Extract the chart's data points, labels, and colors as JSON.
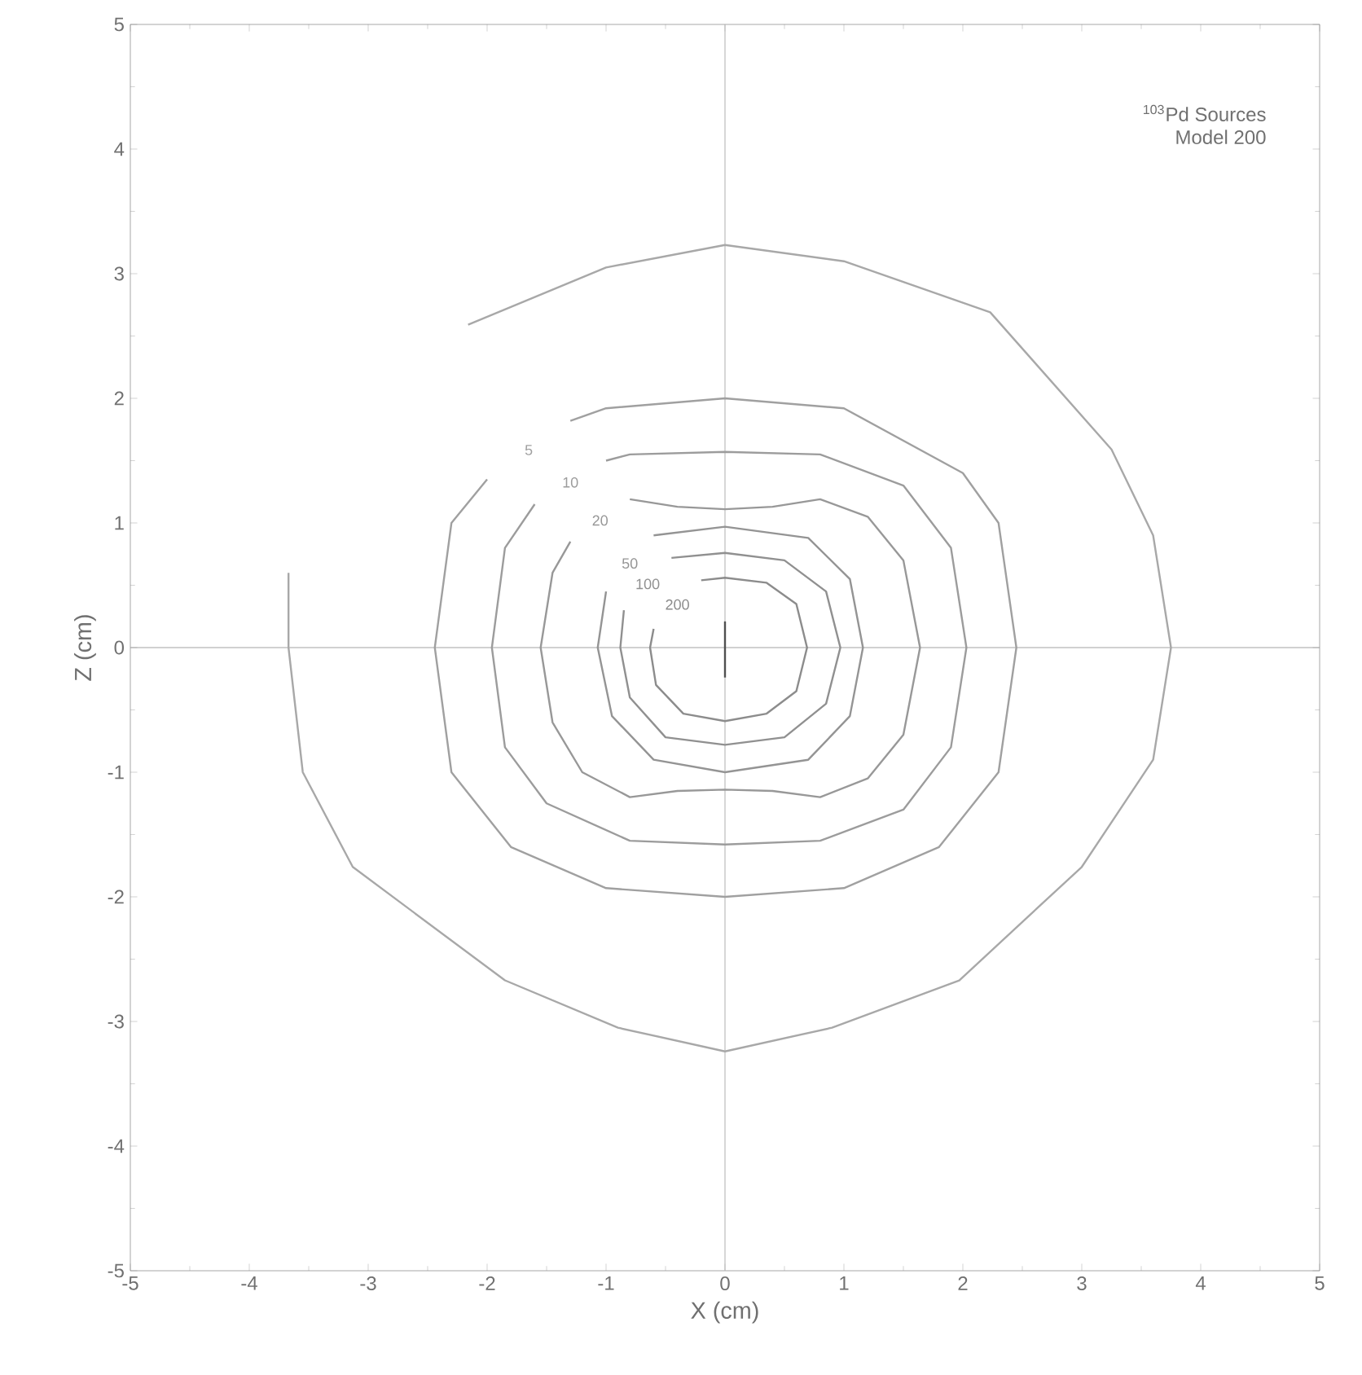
{
  "chart_data": {
    "type": "line",
    "title": "$^{103}$Pd Sources",
    "subtitle": "Model 200",
    "xlabel": "X (cm)",
    "ylabel": "Z (cm)",
    "xlim": [
      -5,
      5
    ],
    "ylim": [
      -5,
      5
    ],
    "xticks": [
      -5,
      -4,
      -3,
      -2,
      -1,
      0,
      1,
      2,
      3,
      4,
      5
    ],
    "yticks": [
      -5,
      -4,
      -3,
      -2,
      -1,
      0,
      1,
      2,
      3,
      4,
      5
    ],
    "ref_lines": [
      {
        "axis": "x",
        "value": 0,
        "color": "#bcbcbc"
      },
      {
        "axis": "y",
        "value": 0,
        "color": "#a4a4a4"
      }
    ],
    "marker": "none",
    "line_style": "solid",
    "series": [
      {
        "color": "#a8a8a8",
        "x": [
          -2.16,
          -1.0,
          0,
          1.0,
          2.23,
          3.25,
          3.6,
          3.75,
          3.6,
          3.0,
          1.97,
          0.9,
          0,
          -0.9,
          -1.85,
          -3.13,
          -3.55,
          -3.67,
          -3.67
        ],
        "values": [
          2.59,
          3.05,
          3.23,
          3.1,
          2.69,
          1.59,
          0.9,
          0,
          -0.9,
          -1.76,
          -2.67,
          -3.05,
          -3.24,
          -3.05,
          -2.67,
          -1.76,
          -1.0,
          0,
          0.6
        ]
      },
      {
        "name": "5",
        "color": "#a0a0a0",
        "x": [
          -1.3,
          -1.0,
          0,
          1.0,
          2.0,
          2.3,
          2.45,
          2.3,
          1.8,
          1.0,
          0,
          -1.0,
          -1.8,
          -2.3,
          -2.44,
          -2.3,
          -2.0
        ],
        "values": [
          1.82,
          1.92,
          2.0,
          1.92,
          1.4,
          1.0,
          0,
          -1.0,
          -1.6,
          -1.93,
          -2.0,
          -1.93,
          -1.6,
          -1.0,
          0,
          1.0,
          1.35
        ]
      },
      {
        "name": "10",
        "color": "#9c9c9c",
        "x": [
          -1.0,
          -0.8,
          0,
          0.8,
          1.5,
          1.9,
          2.03,
          1.9,
          1.5,
          0.8,
          0,
          -0.8,
          -1.5,
          -1.85,
          -1.96,
          -1.85,
          -1.6
        ],
        "values": [
          1.5,
          1.55,
          1.57,
          1.55,
          1.3,
          0.8,
          0,
          -0.8,
          -1.3,
          -1.55,
          -1.58,
          -1.55,
          -1.25,
          -0.8,
          0,
          0.8,
          1.15
        ]
      },
      {
        "name": "20",
        "color": "#989898",
        "x": [
          -0.8,
          -0.4,
          0,
          0.4,
          0.8,
          1.2,
          1.5,
          1.64,
          1.5,
          1.2,
          0.8,
          0.4,
          0,
          -0.4,
          -0.8,
          -1.2,
          -1.45,
          -1.55,
          -1.45,
          -1.3
        ],
        "values": [
          1.19,
          1.13,
          1.11,
          1.13,
          1.19,
          1.05,
          0.7,
          0,
          -0.7,
          -1.05,
          -1.2,
          -1.15,
          -1.14,
          -1.15,
          -1.2,
          -1.0,
          -0.6,
          0,
          0.6,
          0.85
        ]
      },
      {
        "name": "50",
        "color": "#949494",
        "x": [
          -0.6,
          0,
          0.7,
          1.05,
          1.16,
          1.05,
          0.7,
          0,
          -0.6,
          -0.95,
          -1.07,
          -1.0
        ],
        "values": [
          0.9,
          0.97,
          0.88,
          0.55,
          0,
          -0.55,
          -0.9,
          -1.0,
          -0.9,
          -0.55,
          0,
          0.45
        ]
      },
      {
        "name": "100",
        "color": "#909090",
        "x": [
          -0.45,
          0,
          0.5,
          0.85,
          0.97,
          0.85,
          0.5,
          0,
          -0.5,
          -0.8,
          -0.88,
          -0.85
        ],
        "values": [
          0.72,
          0.76,
          0.7,
          0.45,
          0,
          -0.45,
          -0.72,
          -0.78,
          -0.72,
          -0.4,
          0,
          0.3
        ]
      },
      {
        "name": "200",
        "color": "#8c8c8c",
        "x": [
          -0.2,
          0,
          0.35,
          0.6,
          0.69,
          0.6,
          0.35,
          0,
          -0.35,
          -0.58,
          -0.63,
          -0.6
        ],
        "values": [
          0.54,
          0.56,
          0.52,
          0.35,
          0,
          -0.35,
          -0.53,
          -0.59,
          -0.53,
          -0.3,
          0,
          0.15
        ]
      },
      {
        "color": "#505050",
        "x": [
          0,
          0
        ],
        "values": [
          0.21,
          -0.24
        ]
      }
    ]
  }
}
